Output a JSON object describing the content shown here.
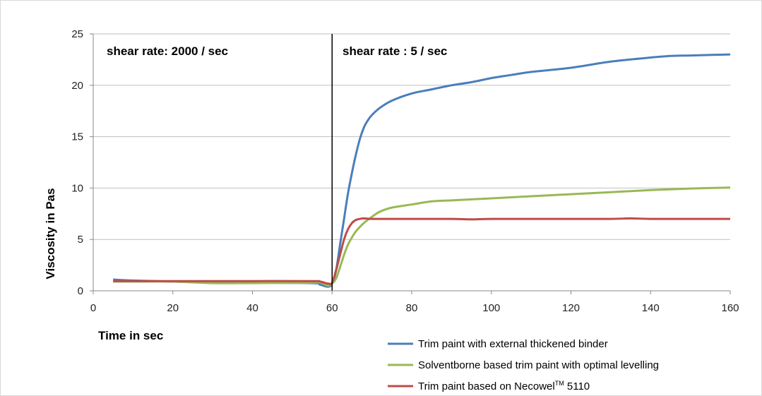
{
  "chart_data": {
    "type": "line",
    "xlabel": "Time in sec",
    "ylabel": "Viscosity in Pas",
    "xlim": [
      0,
      160
    ],
    "ylim": [
      0,
      25
    ],
    "xticks": [
      0,
      20,
      40,
      60,
      80,
      100,
      120,
      140,
      160
    ],
    "yticks": [
      0,
      5,
      10,
      15,
      20,
      25
    ],
    "grid": "horizontal",
    "legend_position": "bottom-right",
    "annotations": {
      "left_region": "shear rate: 2000 / sec",
      "right_region": "shear rate : 5 / sec",
      "divider_x": 60
    },
    "series": [
      {
        "name": "Trim paint with external thickened binder",
        "color": "#4a7ebb",
        "x": [
          5,
          10,
          20,
          30,
          40,
          55,
          57,
          59,
          60,
          61,
          62,
          63,
          64,
          65,
          66,
          67,
          68,
          69,
          70,
          72,
          75,
          80,
          85,
          90,
          95,
          100,
          105,
          110,
          120,
          130,
          140,
          145,
          150,
          160
        ],
        "y": [
          1.1,
          1.0,
          0.9,
          0.8,
          0.8,
          0.75,
          0.6,
          0.4,
          0.7,
          2.0,
          4.5,
          7.0,
          9.5,
          11.5,
          13.3,
          14.8,
          15.9,
          16.6,
          17.1,
          17.8,
          18.5,
          19.2,
          19.6,
          20.0,
          20.3,
          20.7,
          21.0,
          21.3,
          21.7,
          22.3,
          22.7,
          22.85,
          22.9,
          23.0
        ]
      },
      {
        "name": "Solventborne based trim paint with optimal levelling",
        "color": "#98b954",
        "x": [
          5,
          10,
          20,
          30,
          40,
          55,
          57,
          59,
          60,
          61,
          62,
          63,
          64,
          65,
          66,
          68,
          70,
          72,
          75,
          80,
          85,
          90,
          100,
          110,
          120,
          130,
          140,
          150,
          160
        ],
        "y": [
          0.9,
          0.9,
          0.9,
          0.75,
          0.75,
          0.8,
          0.8,
          0.5,
          0.7,
          1.2,
          2.3,
          3.5,
          4.5,
          5.2,
          5.8,
          6.6,
          7.2,
          7.7,
          8.1,
          8.4,
          8.7,
          8.8,
          9.0,
          9.2,
          9.4,
          9.6,
          9.8,
          9.95,
          10.05
        ]
      },
      {
        "name": "Trim paint based on Necowel™ 5110",
        "color": "#be4b48",
        "x": [
          5,
          10,
          20,
          30,
          40,
          55,
          57,
          59,
          60,
          61,
          62,
          63,
          64,
          65,
          66,
          67,
          68,
          70,
          75,
          80,
          90,
          95,
          100,
          110,
          120,
          130,
          135,
          140,
          150,
          160
        ],
        "y": [
          0.95,
          0.95,
          0.95,
          0.95,
          0.95,
          0.95,
          0.9,
          0.7,
          0.8,
          2.0,
          3.5,
          5.0,
          6.0,
          6.6,
          6.9,
          7.0,
          7.05,
          7.0,
          7.0,
          7.0,
          7.0,
          6.95,
          7.0,
          7.0,
          7.0,
          7.0,
          7.05,
          7.0,
          7.0,
          7.0
        ]
      }
    ]
  },
  "legend": [
    {
      "prefix": "Trim paint with external thickened binder",
      "sup": "",
      "suffix": ""
    },
    {
      "prefix": "Solventborne based trim paint with optimal levelling",
      "sup": "",
      "suffix": ""
    },
    {
      "prefix": "Trim paint based on Necowel",
      "sup": "TM",
      "suffix": " 5110"
    }
  ]
}
